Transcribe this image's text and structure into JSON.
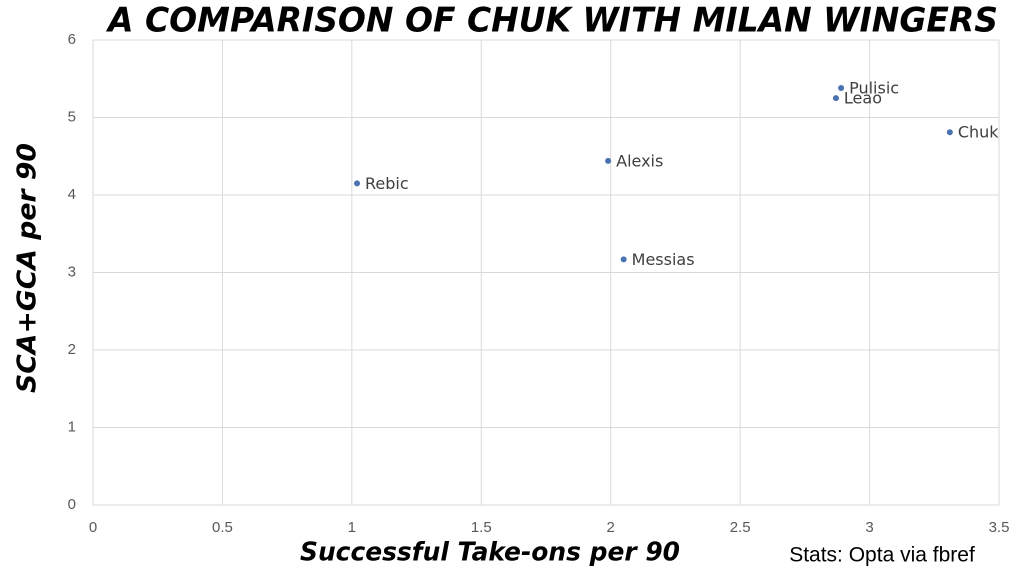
{
  "chart_data": {
    "type": "scatter",
    "title": "A COMPARISON OF CHUK WITH MILAN WINGERS",
    "x_label": "Successful Take-ons per 90",
    "y_label": "SCA+GCA per 90",
    "source": "Stats: Opta via fbref",
    "labels": [
      "Rebic",
      "Alexis",
      "Messias",
      "Pulisic",
      "Leao",
      "Chuk"
    ],
    "x": [
      1.02,
      1.99,
      2.05,
      2.89,
      2.87,
      3.31
    ],
    "values": [
      4.15,
      4.44,
      3.17,
      5.38,
      5.25,
      4.81
    ],
    "color": "#4a72b0",
    "xlim": [
      0,
      3.5
    ],
    "xticks": [
      0,
      0.5,
      1,
      1.5,
      2,
      2.5,
      3,
      3.5
    ],
    "ylim": [
      0,
      6
    ],
    "yticks": [
      0,
      1,
      2,
      3,
      4,
      5,
      6
    ],
    "grid": true
  }
}
